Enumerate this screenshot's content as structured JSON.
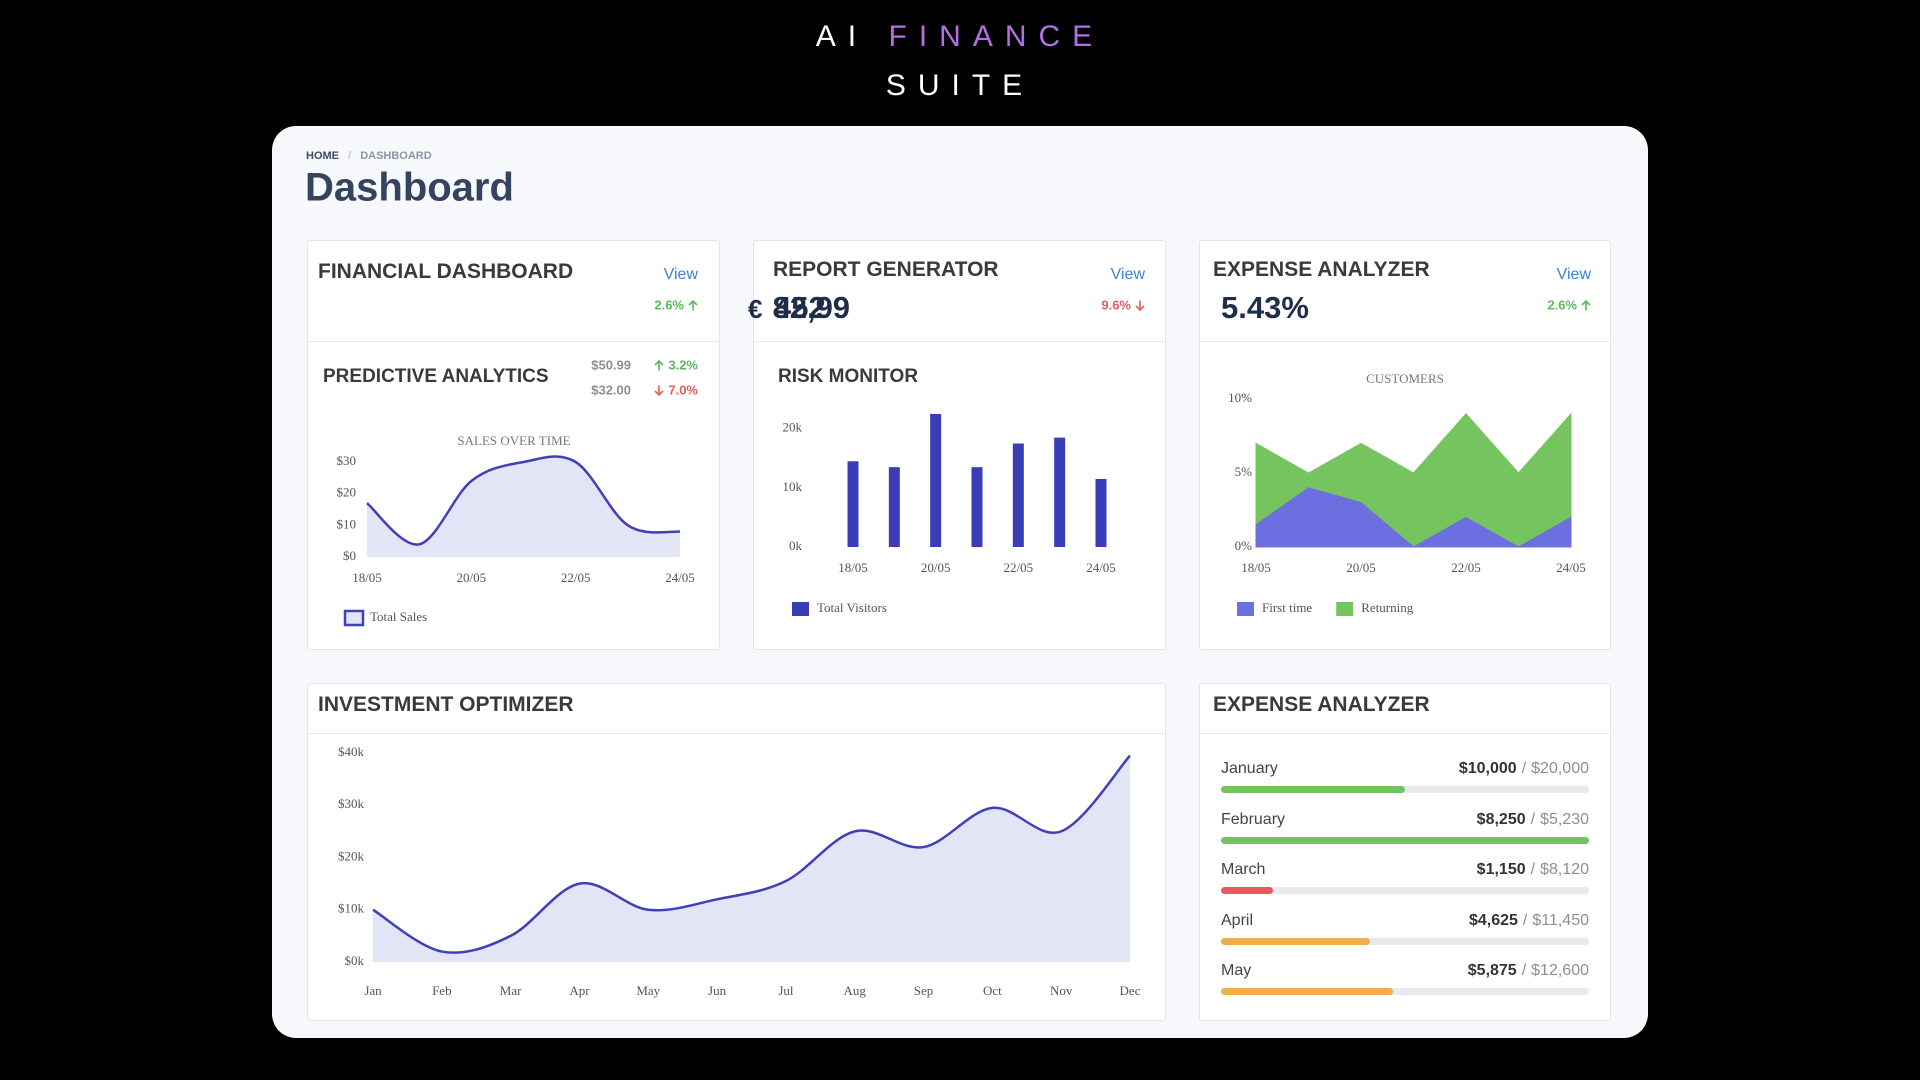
{
  "brand": {
    "words": [
      "AI",
      "FINANCE",
      "SUITE"
    ]
  },
  "breadcrumb": {
    "items": [
      "HOME",
      "DASHBOARD"
    ],
    "separator": "/"
  },
  "page_title": "Dashboard",
  "trend_colors": {
    "up": "#5cb85c",
    "down": "#e35d5d"
  },
  "cards": [
    {
      "title": "FINANCIAL DASHBOARD",
      "link": "View",
      "currency": "€",
      "value": "82,99",
      "change": "2.6%",
      "trend": "up"
    },
    {
      "title": "REPORT GENERATOR",
      "link": "View",
      "value": "452",
      "change": "9.6%",
      "trend": "down"
    },
    {
      "title": "EXPENSE ANALYZER",
      "link": "View",
      "value": "5.43%",
      "change": "2.6%",
      "trend": "up"
    }
  ],
  "sections": {
    "predictive": "PREDICTIVE ANALYTICS",
    "risk": "RISK MONITOR",
    "investment": "INVESTMENT OPTIMIZER"
  },
  "predictive_rows": [
    {
      "value": "$50.99",
      "change": "3.2%",
      "trend": "up"
    },
    {
      "value": "$32.00",
      "change": "7.0%",
      "trend": "down"
    }
  ],
  "chart_data": [
    {
      "type": "line",
      "title": "SALES OVER TIME",
      "smooth": true,
      "fill": true,
      "categories": [
        "18/05",
        null,
        "20/05",
        null,
        "22/05",
        null,
        "24/05"
      ],
      "series": [
        {
          "name": "Total Sales",
          "color": "#4040b8",
          "values": [
            17,
            4,
            24,
            30,
            30,
            10,
            8
          ]
        }
      ],
      "ylim": [
        0,
        30
      ],
      "yticks": [
        {
          "value": 0,
          "label": "$0"
        },
        {
          "value": 10,
          "label": "$10"
        },
        {
          "value": 20,
          "label": "$20"
        },
        {
          "value": 30,
          "label": "$30"
        }
      ]
    },
    {
      "type": "bar",
      "categories": [
        "18/05",
        null,
        "20/05",
        null,
        "22/05",
        null,
        "24/05"
      ],
      "series": [
        {
          "name": "Total Visitors",
          "color": "#3a3db5",
          "values": [
            14.5,
            13.5,
            22.5,
            13.5,
            17.5,
            18.5,
            11.5
          ]
        }
      ],
      "ylim": [
        0,
        23
      ],
      "yticks": [
        {
          "value": 0,
          "label": "0k"
        },
        {
          "value": 10,
          "label": "10k"
        },
        {
          "value": 20,
          "label": "20k"
        }
      ]
    },
    {
      "type": "area",
      "title": "CUSTOMERS",
      "categories": [
        "18/05",
        null,
        "20/05",
        null,
        "22/05",
        null,
        "24/05"
      ],
      "series": [
        {
          "name": "First time",
          "color": "#6b6fe0",
          "values": [
            1.5,
            4,
            3,
            0,
            2,
            0,
            2
          ]
        },
        {
          "name": "Returning",
          "color": "#76c45f",
          "values": [
            7,
            5,
            7,
            5,
            9,
            5,
            9
          ]
        }
      ],
      "ylim": [
        0,
        10
      ],
      "yticks": [
        {
          "value": 0,
          "label": "0%"
        },
        {
          "value": 5,
          "label": "5%"
        },
        {
          "value": 10,
          "label": "10%"
        }
      ]
    },
    {
      "type": "line",
      "smooth": true,
      "fill": true,
      "categories": [
        "Jan",
        "Feb",
        "Mar",
        "Apr",
        "May",
        "Jun",
        "Jul",
        "Aug",
        "Sep",
        "Oct",
        "Nov",
        "Dec"
      ],
      "series": [
        {
          "color": "#4040b8",
          "values": [
            10,
            2,
            5,
            15,
            10,
            12,
            15.5,
            25,
            22,
            29.5,
            25,
            39.5
          ]
        }
      ],
      "ylim": [
        0,
        40
      ],
      "yticks": [
        {
          "value": 0,
          "label": "$0k"
        },
        {
          "value": 10,
          "label": "$10k"
        },
        {
          "value": 20,
          "label": "$20k"
        },
        {
          "value": 30,
          "label": "$30k"
        },
        {
          "value": 40,
          "label": "$40k"
        }
      ]
    }
  ],
  "expenses": {
    "title": "EXPENSE ANALYZER",
    "separator": "/",
    "rows": [
      {
        "label": "January",
        "value": 10000,
        "value_label": "$10,000",
        "total": 20000,
        "total_label": "$20,000",
        "color": "#72c45e"
      },
      {
        "label": "February",
        "value": 8250,
        "value_label": "$8,250",
        "total": 5230,
        "total_label": "$5,230",
        "color": "#72c45e"
      },
      {
        "label": "March",
        "value": 1150,
        "value_label": "$1,150",
        "total": 8120,
        "total_label": "$8,120",
        "color": "#e9575f"
      },
      {
        "label": "April",
        "value": 4625,
        "value_label": "$4,625",
        "total": 11450,
        "total_label": "$11,450",
        "color": "#f0ad4e"
      },
      {
        "label": "May",
        "value": 5875,
        "value_label": "$5,875",
        "total": 12600,
        "total_label": "$12,600",
        "color": "#f0ad4e"
      }
    ]
  }
}
